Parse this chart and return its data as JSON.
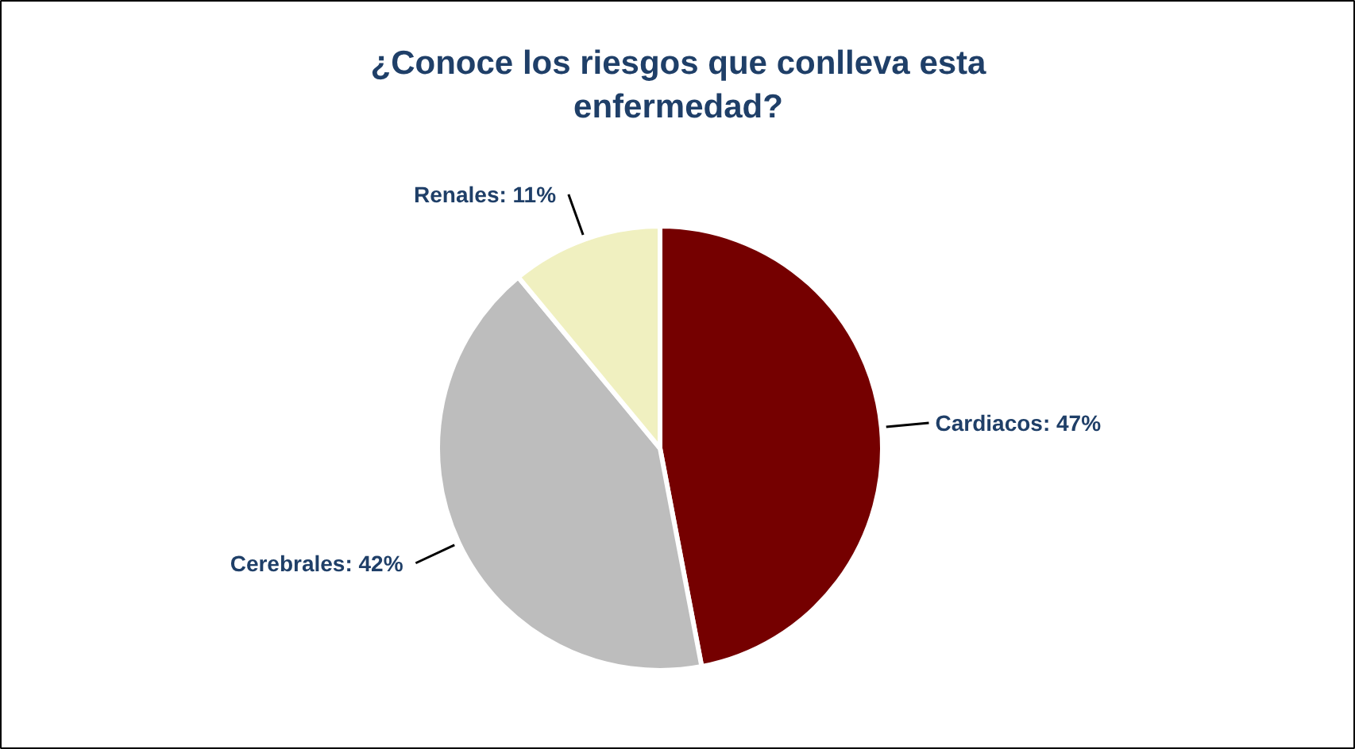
{
  "chart_data": {
    "type": "pie",
    "title": "¿Conoce los riesgos que conlleva esta enfermedad?",
    "categories": [
      "Cardiacos",
      "Cerebrales",
      "Renales"
    ],
    "values": [
      47,
      42,
      11
    ],
    "colors": [
      "#750000",
      "#bdbdbd",
      "#f0f0c0"
    ],
    "value_labels": [
      "47%",
      "42%",
      "11%"
    ]
  }
}
